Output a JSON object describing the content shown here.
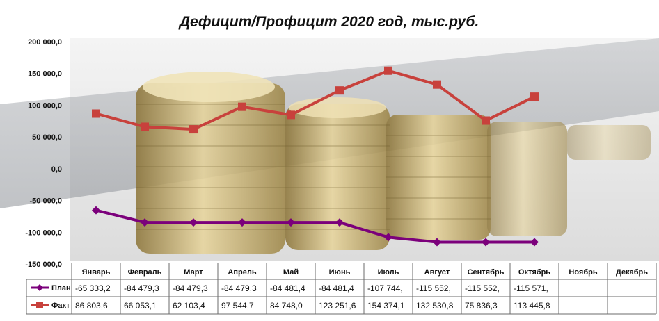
{
  "chart_data": {
    "type": "line",
    "title": "Дефицит/Профицит 2020 год, тыс.руб.",
    "y_ticks": [
      "200 000,0",
      "150 000,0",
      "100 000,0",
      "50 000,0",
      "0,0",
      "-50 000,0",
      "-100 000,0",
      "-150 000,0"
    ],
    "ylim": [
      -150000,
      200000
    ],
    "grid": false,
    "legend": "data-table",
    "categories": [
      "Январь",
      "Февраль",
      "Март",
      "Апрель",
      "Май",
      "Июнь",
      "Июль",
      "Август",
      "Сентябрь",
      "Октябрь",
      "Ноябрь",
      "Декабрь"
    ],
    "series": [
      {
        "name": "План",
        "color": "#7b007b",
        "marker": "diamond",
        "values": [
          -65333.2,
          -84479.3,
          -84479.3,
          -84479.3,
          -84481.4,
          -84481.4,
          -107744,
          -115552,
          -115552,
          -115571,
          null,
          null
        ],
        "labels": [
          "-65 333,2",
          "-84 479,3",
          "-84 479,3",
          "-84 479,3",
          "-84 481,4",
          "-84 481,4",
          "-107 744,",
          "-115 552,",
          "-115 552,",
          "-115 571,",
          "",
          ""
        ]
      },
      {
        "name": "Факт",
        "color": "#c8413c",
        "marker": "square",
        "values": [
          86803.6,
          66053.1,
          62103.4,
          97544.7,
          84748.0,
          123251.6,
          154374.1,
          132530.8,
          75836.3,
          113445.8,
          null,
          null
        ],
        "labels": [
          "86 803,6",
          "66 053,1",
          "62 103,4",
          "97 544,7",
          "84 748,0",
          "123 251,6",
          "154 374,1",
          "132 530,8",
          "75 836,3",
          "113 445,8",
          "",
          ""
        ]
      }
    ]
  }
}
